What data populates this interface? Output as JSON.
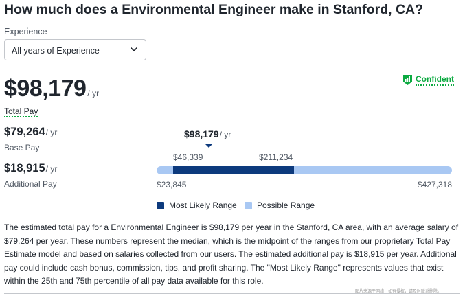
{
  "header": {
    "title": "How much does a Environmental Engineer make in Stanford, CA?"
  },
  "experience": {
    "label": "Experience",
    "selected": "All years of Experience"
  },
  "total_pay": {
    "amount": "$98,179",
    "period": "/ yr",
    "label": "Total Pay"
  },
  "confidence": {
    "label": "Confident",
    "color": "#0caa41",
    "icon": "confident-badge-icon"
  },
  "base_pay": {
    "amount": "$79,264",
    "period": "/ yr",
    "label": "Base Pay"
  },
  "additional_pay": {
    "amount": "$18,915",
    "period": "/ yr",
    "label": "Additional Pay"
  },
  "range": {
    "median": "$98,179",
    "median_period": "/ yr",
    "most_likely_low": "$46,339",
    "most_likely_high": "$211,234",
    "possible_low": "$23,845",
    "possible_high": "$427,318",
    "values": {
      "possible_min": 23845,
      "possible_max": 427318,
      "likely_min": 46339,
      "likely_max": 211234,
      "median": 98179
    }
  },
  "legend": {
    "most_likely": {
      "label": "Most Likely Range",
      "color": "#0d3a7d"
    },
    "possible": {
      "label": "Possible Range",
      "color": "#a9c8f3"
    }
  },
  "description": "The estimated total pay for a Environmental Engineer is $98,179 per year in the Stanford, CA area, with an average salary of $79,264 per year. These numbers represent the median, which is the midpoint of the ranges from our proprietary Total Pay Estimate model and based on salaries collected from our users. The estimated additional pay is $18,915 per year. Additional pay could include cash bonus, commission, tips, and profit sharing. The \"Most Likely Range\" represents values that exist within the 25th and 75th percentile of all pay data available for this role.",
  "watermark": "图片来源于网络，如有侵权，请及时联系删除。"
}
